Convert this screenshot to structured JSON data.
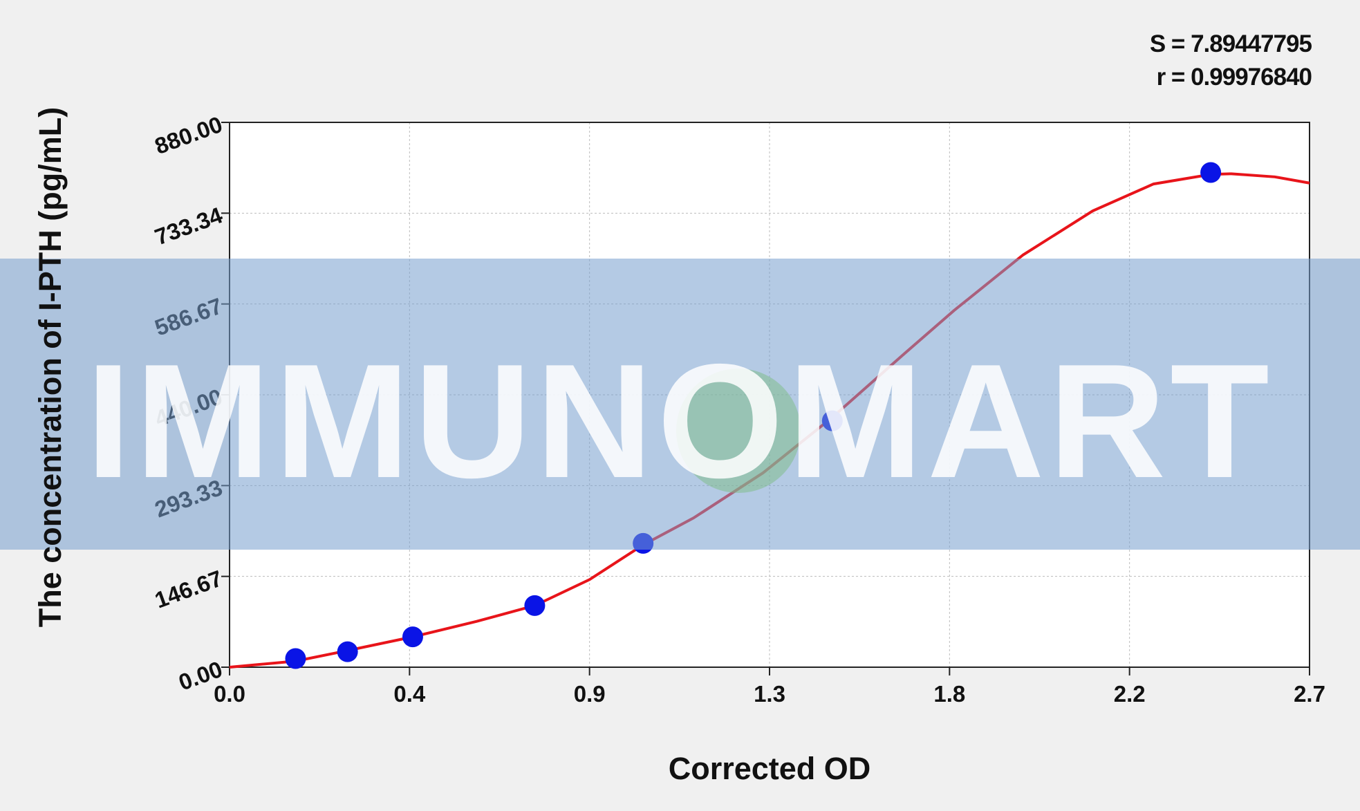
{
  "chart_data": {
    "type": "scatter",
    "stats": [
      "S = 7.89447795",
      "r = 0.99976840"
    ],
    "watermark": "IMMUNOMART",
    "x_label": "Corrected OD",
    "y_label": "The concentration of I-PTH (pg/mL)",
    "xlim": [
      0,
      2.7
    ],
    "ylim": [
      0,
      880
    ],
    "xticks": [
      {
        "value": 0,
        "label": "0.0"
      },
      {
        "value": 0.45,
        "label": "0.4"
      },
      {
        "value": 0.9,
        "label": "0.9"
      },
      {
        "value": 1.35,
        "label": "1.3"
      },
      {
        "value": 1.8,
        "label": "1.8"
      },
      {
        "value": 2.25,
        "label": "2.2"
      },
      2.7
    ],
    "yticks": [
      {
        "value": 0,
        "label": "0.00"
      },
      146.67,
      293.33,
      {
        "value": 440,
        "label": "440.00"
      },
      586.67,
      733.34,
      {
        "value": 880,
        "label": "880.00"
      }
    ],
    "grid": true,
    "series": [
      {
        "style": "line",
        "color": "#e8141a",
        "x": [
          0,
          0.165,
          0.293,
          0.458,
          0.618,
          0.763,
          0.9,
          1.034,
          1.16,
          1.334,
          1.507,
          1.681,
          1.811,
          1.984,
          2.158,
          2.31,
          2.453,
          2.505,
          2.613,
          2.7
        ],
        "values": [
          0,
          9.8,
          26.6,
          49,
          74,
          99.5,
          141.5,
          197.6,
          241,
          314,
          403.6,
          503,
          576,
          666,
          737,
          780.5,
          796,
          797,
          792,
          782
        ]
      },
      {
        "style": "points",
        "color": "#0a14e6",
        "x": [
          0.165,
          0.295,
          0.458,
          0.763,
          1.034,
          1.507,
          2.453
        ],
        "values": [
          14,
          25,
          49,
          99.5,
          200,
          398,
          799
        ]
      }
    ]
  }
}
